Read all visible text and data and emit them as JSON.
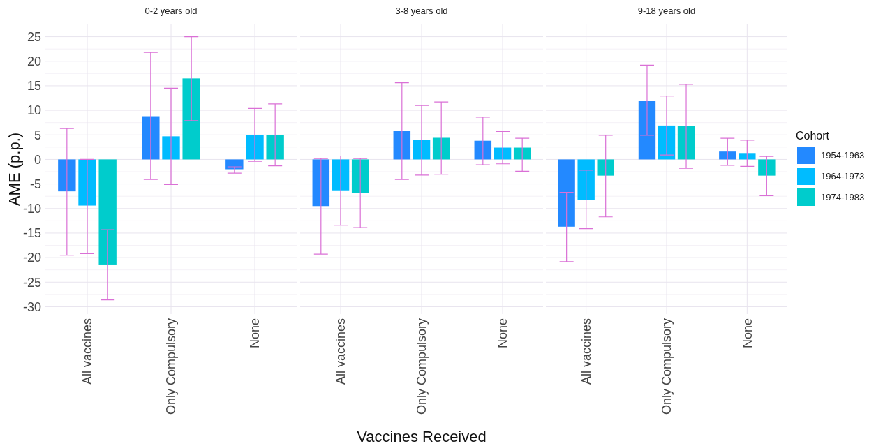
{
  "chart_data": [
    {
      "type": "bar",
      "title": "0-2 years old",
      "ylabel": "AME (p.p.)",
      "categories": [
        "All vaccines",
        "Only Compulsory",
        "None"
      ],
      "ylim": [
        -31.5,
        27.5
      ],
      "yticks": [
        -30,
        -25,
        -20,
        -15,
        -10,
        -5,
        0,
        5,
        10,
        15,
        20,
        25
      ],
      "grid": true,
      "tick_labels": "xy",
      "series": [
        {
          "color": "#2389ff",
          "values": [
            -6.5,
            8.8,
            -2
          ],
          "errors": [
            [
              -19.5,
              6.3
            ],
            [
              -4.1,
              21.8
            ],
            [
              -2.8,
              -1.5
            ]
          ]
        },
        {
          "color": "#00bcff",
          "values": [
            -9.4,
            4.7,
            5
          ],
          "errors": [
            [
              -19.2,
              0
            ],
            [
              -5.1,
              14.5
            ],
            [
              -0.4,
              10.4
            ]
          ]
        },
        {
          "color": "#00cccc",
          "values": [
            -21.4,
            16.5,
            5
          ],
          "errors": [
            [
              -28.6,
              -14.3
            ],
            [
              7.9,
              25
            ],
            [
              -1.3,
              11.3
            ]
          ]
        }
      ]
    },
    {
      "type": "bar",
      "title": "3-8 years old",
      "xlabel": "Vaccines Received",
      "categories": [
        "All vaccines",
        "Only Compulsory",
        "None"
      ],
      "ylim": [
        -31.5,
        27.5
      ],
      "yticks": [
        -30,
        -25,
        -20,
        -15,
        -10,
        -5,
        0,
        5,
        10,
        15,
        20,
        25
      ],
      "grid": true,
      "tick_labels": "x",
      "series": [
        {
          "color": "#2389ff",
          "values": [
            -9.5,
            5.8,
            3.8
          ],
          "errors": [
            [
              -19.3,
              0.2
            ],
            [
              -4.1,
              15.6
            ],
            [
              -1.1,
              8.6
            ]
          ]
        },
        {
          "color": "#00bcff",
          "values": [
            -6.3,
            4.0,
            2.4
          ],
          "errors": [
            [
              -13.4,
              0.7
            ],
            [
              -3.2,
              11.0
            ],
            [
              -0.9,
              5.7
            ]
          ]
        },
        {
          "color": "#00cccc",
          "values": [
            -6.8,
            4.4,
            2.4
          ],
          "errors": [
            [
              -13.9,
              0.2
            ],
            [
              -3.0,
              11.7
            ],
            [
              -2.4,
              4.3
            ]
          ]
        }
      ]
    },
    {
      "type": "bar",
      "title": "9-18 years old",
      "legend_title": "Cohort",
      "legend": "right",
      "categories": [
        "All vaccines",
        "Only Compulsory",
        "None"
      ],
      "ylim": [
        -31.5,
        27.5
      ],
      "yticks": [
        -30,
        -25,
        -20,
        -15,
        -10,
        -5,
        0,
        5,
        10,
        15,
        20,
        25
      ],
      "grid": true,
      "tick_labels": "x",
      "series": [
        {
          "name": "1954-1963",
          "color": "#2389ff",
          "values": [
            -13.7,
            12.0,
            1.6
          ],
          "errors": [
            [
              -20.8,
              -6.7
            ],
            [
              4.9,
              19.2
            ],
            [
              -1.2,
              4.3
            ]
          ]
        },
        {
          "name": "1964-1973",
          "color": "#00bcff",
          "values": [
            -8.2,
            6.9,
            1.3
          ],
          "errors": [
            [
              -14.1,
              -2.2
            ],
            [
              0.9,
              12.9
            ],
            [
              -1.4,
              3.9
            ]
          ]
        },
        {
          "name": "1974-1983",
          "color": "#00cccc",
          "values": [
            -3.3,
            6.8,
            -3.3
          ],
          "errors": [
            [
              -11.7,
              4.9
            ],
            [
              -1.8,
              15.3
            ],
            [
              -7.4,
              0.6
            ]
          ]
        }
      ]
    }
  ]
}
